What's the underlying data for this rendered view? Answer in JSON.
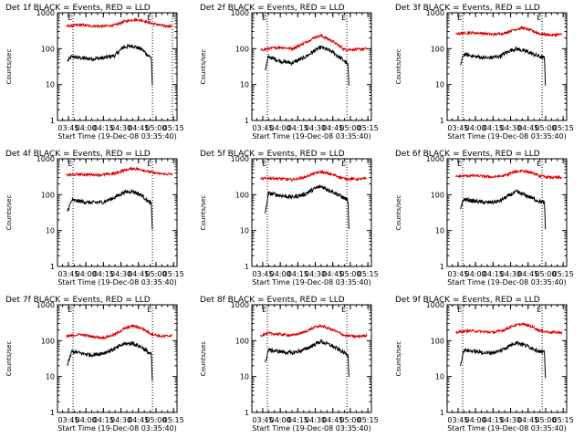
{
  "figure": {
    "background": "#ffffff",
    "events_color": "#000000",
    "lld_color": "#dd0000"
  },
  "chart_data": [
    {
      "type": "line",
      "detector": "1f",
      "title": "Det 1f BLACK = Events, RED = LLD",
      "xlabel": "Start Time (19-Dec-08 03:35:40)",
      "ylabel": "Counts/sec",
      "xticks": [
        "03:45",
        "04:00",
        "04:15",
        "04:30",
        "04:45",
        "05:00",
        "05:15"
      ],
      "yticks": [
        "1",
        "10",
        "100",
        "1000"
      ],
      "yscale": "log",
      "ylim": [
        1,
        1000
      ],
      "markers": [
        {
          "label": "E",
          "time": "03:49"
        },
        {
          "label": "E",
          "time": "04:57"
        },
        {
          "label": "",
          "time": "05:14"
        }
      ],
      "series": [
        {
          "name": "Events",
          "color": "#000000",
          "x": [
            "03:44",
            "03:48",
            "03:55",
            "04:05",
            "04:15",
            "04:25",
            "04:32",
            "04:40",
            "04:48",
            "04:54",
            "04:56",
            "04:57"
          ],
          "y": [
            45,
            60,
            55,
            52,
            55,
            65,
            110,
            120,
            95,
            62,
            58,
            6
          ]
        },
        {
          "name": "LLD",
          "color": "#dd0000",
          "x": [
            "03:43",
            "03:55",
            "04:05",
            "04:15",
            "04:25",
            "04:32",
            "04:40",
            "04:48",
            "04:55",
            "05:05",
            "05:14"
          ],
          "y": [
            420,
            460,
            430,
            420,
            450,
            560,
            640,
            620,
            520,
            440,
            420
          ]
        }
      ]
    },
    {
      "type": "line",
      "detector": "2f",
      "title": "Det 2f BLACK = Events, RED = LLD",
      "xlabel": "Start Time (19-Dec-08 03:35:40)",
      "ylabel": "Counts/sec",
      "xticks": [
        "03:45",
        "04:00",
        "04:15",
        "04:30",
        "04:45",
        "05:00",
        "05:15"
      ],
      "yticks": [
        "1",
        "10",
        "100",
        "1000"
      ],
      "yscale": "log",
      "ylim": [
        1,
        1000
      ],
      "markers": [
        {
          "label": "E",
          "time": "03:49"
        },
        {
          "label": "E",
          "time": "04:57"
        }
      ],
      "series": [
        {
          "name": "Events",
          "color": "#000000",
          "x": [
            "03:47",
            "03:50",
            "04:00",
            "04:10",
            "04:20",
            "04:30",
            "04:35",
            "04:45",
            "04:55",
            "04:58",
            "04:59"
          ],
          "y": [
            25,
            60,
            45,
            40,
            55,
            90,
            110,
            80,
            45,
            35,
            6
          ]
        },
        {
          "name": "LLD",
          "color": "#dd0000",
          "x": [
            "03:43",
            "03:50",
            "04:00",
            "04:10",
            "04:20",
            "04:30",
            "04:35",
            "04:45",
            "04:55",
            "05:05",
            "05:14"
          ],
          "y": [
            90,
            100,
            110,
            100,
            140,
            210,
            230,
            160,
            95,
            95,
            100
          ]
        }
      ]
    },
    {
      "type": "line",
      "detector": "3f",
      "title": "Det 3f BLACK = Events, RED = LLD",
      "xlabel": "Start Time (19-Dec-08 03:35:40)",
      "ylabel": "Counts/sec",
      "xticks": [
        "03:45",
        "04:00",
        "04:15",
        "04:30",
        "04:45",
        "05:00",
        "05:15"
      ],
      "yticks": [
        "1",
        "10",
        "100",
        "1000"
      ],
      "yscale": "log",
      "ylim": [
        1,
        1000
      ],
      "markers": [
        {
          "label": "E",
          "time": "03:49"
        },
        {
          "label": "E",
          "time": "04:57"
        }
      ],
      "series": [
        {
          "name": "Events",
          "color": "#000000",
          "x": [
            "03:47",
            "03:50",
            "04:00",
            "04:10",
            "04:20",
            "04:30",
            "04:35",
            "04:45",
            "04:55",
            "04:59",
            "05:00"
          ],
          "y": [
            35,
            70,
            60,
            55,
            60,
            90,
            100,
            80,
            60,
            55,
            6
          ]
        },
        {
          "name": "LLD",
          "color": "#dd0000",
          "x": [
            "03:43",
            "03:55",
            "04:05",
            "04:15",
            "04:25",
            "04:32",
            "04:40",
            "04:48",
            "04:55",
            "05:05",
            "05:14"
          ],
          "y": [
            260,
            280,
            270,
            250,
            270,
            330,
            380,
            320,
            260,
            240,
            250
          ]
        }
      ]
    },
    {
      "type": "line",
      "detector": "4f",
      "title": "Det 4f BLACK = Events, RED = LLD",
      "xlabel": "Start Time (19-Dec-08 03:35:40)",
      "ylabel": "Counts/sec",
      "xticks": [
        "03:45",
        "04:00",
        "04:15",
        "04:30",
        "04:45",
        "05:00",
        "05:15"
      ],
      "yticks": [
        "1",
        "10",
        "100",
        "1000"
      ],
      "yscale": "log",
      "ylim": [
        1,
        1000
      ],
      "markers": [
        {
          "label": "E",
          "time": "03:49"
        },
        {
          "label": "E",
          "time": "04:57"
        }
      ],
      "series": [
        {
          "name": "Events",
          "color": "#000000",
          "x": [
            "03:44",
            "03:48",
            "03:55",
            "04:05",
            "04:15",
            "04:25",
            "04:32",
            "04:40",
            "04:48",
            "04:54",
            "04:56",
            "04:57"
          ],
          "y": [
            35,
            70,
            65,
            60,
            62,
            85,
            115,
            125,
            95,
            62,
            58,
            7
          ]
        },
        {
          "name": "LLD",
          "color": "#dd0000",
          "x": [
            "03:43",
            "03:55",
            "04:05",
            "04:15",
            "04:25",
            "04:32",
            "04:40",
            "04:48",
            "04:55",
            "05:05",
            "05:14"
          ],
          "y": [
            350,
            370,
            360,
            360,
            390,
            470,
            540,
            500,
            420,
            380,
            370
          ]
        }
      ]
    },
    {
      "type": "line",
      "detector": "5f",
      "title": "Det 5f BLACK = Events, RED = LLD",
      "xlabel": "Start Time (19-Dec-08 03:35:40)",
      "ylabel": "Counts/sec",
      "xticks": [
        "03:45",
        "04:00",
        "04:15",
        "04:30",
        "04:45",
        "05:00",
        "05:15"
      ],
      "yticks": [
        "1",
        "10",
        "100",
        "1000"
      ],
      "yscale": "log",
      "ylim": [
        1,
        1000
      ],
      "markers": [
        {
          "label": "E",
          "time": "03:49"
        },
        {
          "label": "E",
          "time": "04:57"
        }
      ],
      "series": [
        {
          "name": "Events",
          "color": "#000000",
          "x": [
            "03:47",
            "03:50",
            "04:00",
            "04:10",
            "04:20",
            "04:30",
            "04:35",
            "04:45",
            "04:55",
            "04:58",
            "04:59"
          ],
          "y": [
            30,
            110,
            95,
            85,
            100,
            150,
            170,
            120,
            80,
            70,
            6
          ]
        },
        {
          "name": "LLD",
          "color": "#dd0000",
          "x": [
            "03:43",
            "03:50",
            "04:00",
            "04:10",
            "04:20",
            "04:30",
            "04:35",
            "04:45",
            "04:55",
            "05:05",
            "05:14"
          ],
          "y": [
            270,
            290,
            280,
            260,
            300,
            400,
            430,
            360,
            280,
            270,
            280
          ]
        }
      ]
    },
    {
      "type": "line",
      "detector": "6f",
      "title": "Det 6f BLACK = Events, RED = LLD",
      "xlabel": "Start Time (19-Dec-08 03:35:40)",
      "ylabel": "Counts/sec",
      "xticks": [
        "03:45",
        "04:00",
        "04:15",
        "04:30",
        "04:45",
        "05:00",
        "05:15"
      ],
      "yticks": [
        "1",
        "10",
        "100",
        "1000"
      ],
      "yscale": "log",
      "ylim": [
        1,
        1000
      ],
      "markers": [
        {
          "label": "E",
          "time": "03:49"
        },
        {
          "label": "E",
          "time": "04:57"
        }
      ],
      "series": [
        {
          "name": "Events",
          "color": "#000000",
          "x": [
            "03:47",
            "03:50",
            "04:00",
            "04:10",
            "04:20",
            "04:30",
            "04:35",
            "04:45",
            "04:55",
            "04:59",
            "05:00"
          ],
          "y": [
            40,
            75,
            65,
            60,
            65,
            100,
            120,
            90,
            65,
            60,
            7
          ]
        },
        {
          "name": "LLD",
          "color": "#dd0000",
          "x": [
            "03:43",
            "03:55",
            "04:05",
            "04:15",
            "04:25",
            "04:32",
            "04:40",
            "04:48",
            "04:55",
            "05:05",
            "05:14"
          ],
          "y": [
            320,
            340,
            330,
            310,
            340,
            420,
            470,
            410,
            330,
            300,
            300
          ]
        }
      ]
    },
    {
      "type": "line",
      "detector": "7f",
      "title": "Det 7f BLACK = Events, RED = LLD",
      "xlabel": "Start Time (19-Dec-08 03:35:40)",
      "ylabel": "Counts/sec",
      "xticks": [
        "03:45",
        "04:00",
        "04:15",
        "04:30",
        "04:45",
        "05:00",
        "05:15"
      ],
      "yticks": [
        "1",
        "10",
        "100",
        "1000"
      ],
      "yscale": "log",
      "ylim": [
        1,
        1000
      ],
      "markers": [
        {
          "label": "E",
          "time": "03:49"
        },
        {
          "label": "E",
          "time": "04:57"
        }
      ],
      "series": [
        {
          "name": "Events",
          "color": "#000000",
          "x": [
            "03:44",
            "03:48",
            "03:55",
            "04:05",
            "04:15",
            "04:25",
            "04:32",
            "04:40",
            "04:48",
            "04:54",
            "04:56",
            "04:57"
          ],
          "y": [
            20,
            50,
            45,
            40,
            45,
            60,
            80,
            85,
            65,
            45,
            42,
            5
          ]
        },
        {
          "name": "LLD",
          "color": "#dd0000",
          "x": [
            "03:43",
            "03:55",
            "04:05",
            "04:15",
            "04:25",
            "04:32",
            "04:40",
            "04:48",
            "04:55",
            "05:05",
            "05:14"
          ],
          "y": [
            130,
            150,
            130,
            120,
            150,
            210,
            260,
            220,
            160,
            130,
            140
          ]
        }
      ]
    },
    {
      "type": "line",
      "detector": "8f",
      "title": "Det 8f BLACK = Events, RED = LLD",
      "xlabel": "Start Time (19-Dec-08 03:35:40)",
      "ylabel": "Counts/sec",
      "xticks": [
        "03:45",
        "04:00",
        "04:15",
        "04:30",
        "04:45",
        "05:00",
        "05:15"
      ],
      "yticks": [
        "1",
        "10",
        "100",
        "1000"
      ],
      "yscale": "log",
      "ylim": [
        1,
        1000
      ],
      "markers": [
        {
          "label": "E",
          "time": "03:49"
        },
        {
          "label": "E",
          "time": "04:57"
        }
      ],
      "series": [
        {
          "name": "Events",
          "color": "#000000",
          "x": [
            "03:47",
            "03:50",
            "04:00",
            "04:10",
            "04:20",
            "04:30",
            "04:35",
            "04:45",
            "04:55",
            "04:58",
            "04:59"
          ],
          "y": [
            25,
            55,
            50,
            45,
            55,
            80,
            95,
            70,
            45,
            40,
            6
          ]
        },
        {
          "name": "LLD",
          "color": "#dd0000",
          "x": [
            "03:43",
            "03:50",
            "04:00",
            "04:10",
            "04:20",
            "04:30",
            "04:35",
            "04:45",
            "04:55",
            "05:05",
            "05:14"
          ],
          "y": [
            140,
            160,
            150,
            140,
            170,
            240,
            260,
            200,
            140,
            130,
            140
          ]
        }
      ]
    },
    {
      "type": "line",
      "detector": "9f",
      "title": "Det 9f BLACK = Events, RED = LLD",
      "xlabel": "Start Time (19-Dec-08 03:35:40)",
      "ylabel": "Counts/sec",
      "xticks": [
        "03:45",
        "04:00",
        "04:15",
        "04:30",
        "04:45",
        "05:00",
        "05:15"
      ],
      "yticks": [
        "1",
        "10",
        "100",
        "1000"
      ],
      "yscale": "log",
      "ylim": [
        1,
        1000
      ],
      "markers": [
        {
          "label": "E",
          "time": "03:49"
        },
        {
          "label": "E",
          "time": "04:57"
        }
      ],
      "series": [
        {
          "name": "Events",
          "color": "#000000",
          "x": [
            "03:47",
            "03:50",
            "04:00",
            "04:10",
            "04:20",
            "04:30",
            "04:35",
            "04:45",
            "04:55",
            "04:59",
            "05:00"
          ],
          "y": [
            20,
            55,
            50,
            45,
            50,
            75,
            90,
            70,
            50,
            45,
            6
          ]
        },
        {
          "name": "LLD",
          "color": "#dd0000",
          "x": [
            "03:43",
            "03:55",
            "04:05",
            "04:15",
            "04:25",
            "04:32",
            "04:40",
            "04:48",
            "04:55",
            "05:05",
            "05:14"
          ],
          "y": [
            170,
            190,
            180,
            170,
            200,
            260,
            290,
            250,
            190,
            170,
            170
          ]
        }
      ]
    }
  ]
}
